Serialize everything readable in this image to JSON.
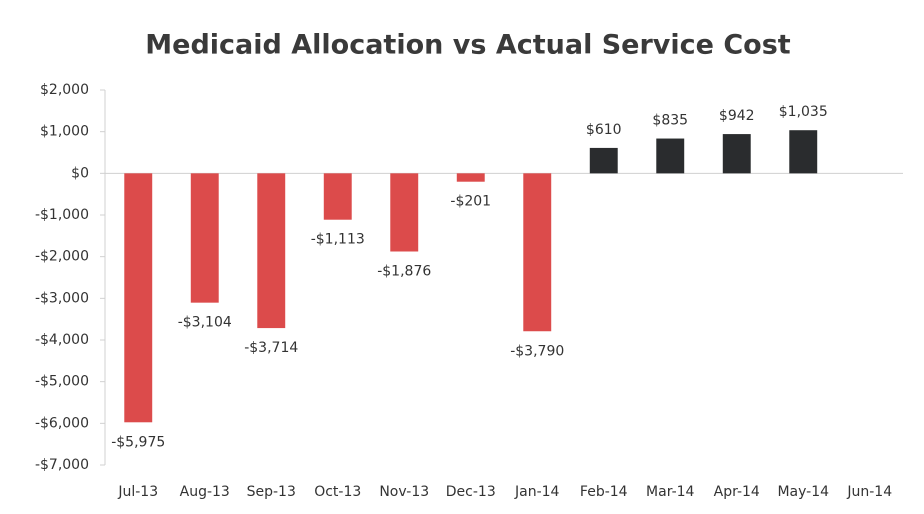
{
  "chart_data": {
    "type": "bar",
    "title": "Medicaid Allocation vs Actual Service Cost",
    "categories": [
      "Jul-13",
      "Aug-13",
      "Sep-13",
      "Oct-13",
      "Nov-13",
      "Dec-13",
      "Jan-14",
      "Feb-14",
      "Mar-14",
      "Apr-14",
      "May-14",
      "Jun-14"
    ],
    "values": [
      -5975,
      -3104,
      -3714,
      -1113,
      -1876,
      -201,
      -3790,
      610,
      835,
      942,
      1035,
      null
    ],
    "value_labels": [
      "-$5,975",
      "-$3,104",
      "-$3,714",
      "-$1,113",
      "-$1,876",
      "-$201",
      "-$3,790",
      "$610",
      "$835",
      "$942",
      "$1,035",
      null
    ],
    "negative_color": "#dc4b4b",
    "positive_color": "#2a2c2e",
    "ylim": [
      -7000,
      2000
    ],
    "yticks": [
      {
        "value": 2000,
        "label": "$2,000"
      },
      {
        "value": 1000,
        "label": "$1,000"
      },
      {
        "value": 0,
        "label": "$0"
      },
      {
        "value": -1000,
        "label": "-$1,000"
      },
      {
        "value": -2000,
        "label": "-$2,000"
      },
      {
        "value": -3000,
        "label": "-$3,000"
      },
      {
        "value": -4000,
        "label": "-$4,000"
      },
      {
        "value": -5000,
        "label": "-$5,000"
      },
      {
        "value": -6000,
        "label": "-$6,000"
      },
      {
        "value": -7000,
        "label": "-$7,000"
      }
    ],
    "grid": false
  }
}
